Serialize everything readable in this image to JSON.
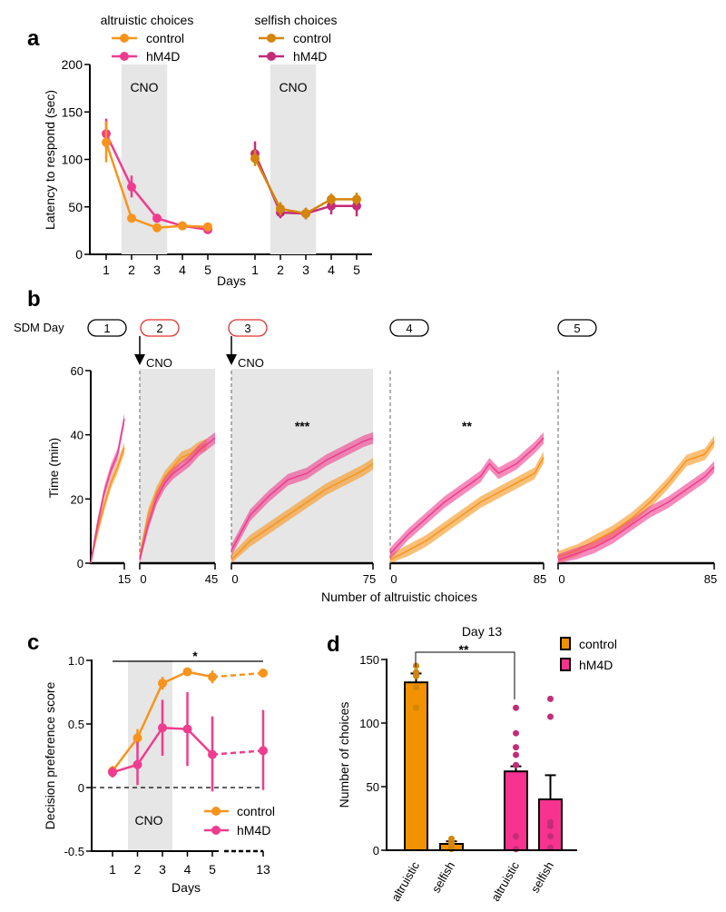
{
  "colors": {
    "control": "#F7941D",
    "hM4D": "#EE3D8E",
    "control_dark": "#D4850B",
    "hM4D_dark": "#C42C78",
    "cno_shade": "#E6E6E6",
    "cno_pill": "#E0312F"
  },
  "chart_data": [
    {
      "panel": "a",
      "type": "line",
      "ylabel": "Latency to respond  (sec)",
      "xlabel": "Days",
      "ylim": [
        0,
        200
      ],
      "yticks": [
        "0",
        "50",
        "100",
        "150",
        "200"
      ],
      "shade_label": "CNO",
      "cno_days": [
        2,
        3
      ],
      "groups": [
        {
          "title": "altruistic choices",
          "days": [
            "1",
            "2",
            "3",
            "4",
            "5"
          ],
          "series": [
            {
              "name": "control",
              "color": "#F7941D",
              "mean": [
                118,
                38,
                28,
                30,
                29
              ],
              "err": [
                [
                  97,
                  140
                ],
                [
                  35,
                  41
                ],
                [
                  26,
                  30
                ],
                [
                  27,
                  33
                ],
                [
                  27,
                  31
                ]
              ]
            },
            {
              "name": "hM4D",
              "color": "#EE3D8E",
              "mean": [
                127,
                71,
                38,
                30,
                26
              ],
              "err": [
                [
                  112,
                  143
                ],
                [
                  60,
                  83
                ],
                [
                  35,
                  41
                ],
                [
                  28,
                  33
                ],
                [
                  24,
                  29
                ]
              ]
            }
          ]
        },
        {
          "title": "selfish choices",
          "days": [
            "1",
            "2",
            "3",
            "4",
            "5"
          ],
          "series": [
            {
              "name": "control",
              "color": "#D4850B",
              "mean": [
                101,
                48,
                43,
                58,
                58
              ],
              "err": [
                [
                  93,
                  110
                ],
                [
                  41,
                  55
                ],
                [
                  37,
                  49
                ],
                [
                  52,
                  64
                ],
                [
                  52,
                  65
                ]
              ]
            },
            {
              "name": "hM4D",
              "color": "#C42C78",
              "mean": [
                106,
                44,
                43,
                51,
                51
              ],
              "err": [
                [
                  97,
                  119
                ],
                [
                  38,
                  50
                ],
                [
                  37,
                  49
                ],
                [
                  42,
                  60
                ],
                [
                  40,
                  60
                ]
              ]
            }
          ]
        }
      ]
    },
    {
      "panel": "b",
      "type": "area",
      "row_label": "SDM Day",
      "ylabel": "Time (min)",
      "xlabel": "Number of altruistic choices",
      "ylim": [
        0,
        60
      ],
      "yticks": [
        "0",
        "20",
        "40",
        "60"
      ],
      "cno_label": "CNO",
      "days": [
        {
          "day": "1",
          "cno": false,
          "xmax": 15,
          "xticks": [
            "15"
          ],
          "stars": "",
          "control": [
            [
              0,
              0
            ],
            [
              3,
              10
            ],
            [
              6,
              18
            ],
            [
              9,
              25
            ],
            [
              12,
              30
            ],
            [
              15,
              36
            ]
          ],
          "hM4D": [
            [
              0,
              0
            ],
            [
              3,
              12
            ],
            [
              6,
              22
            ],
            [
              9,
              29
            ],
            [
              12,
              34
            ],
            [
              15,
              45
            ]
          ]
        },
        {
          "day": "2",
          "cno": true,
          "xmax": 45,
          "xticks": [
            "0",
            "45"
          ],
          "stars": "",
          "control": [
            [
              0,
              2
            ],
            [
              5,
              15
            ],
            [
              10,
              22
            ],
            [
              15,
              27
            ],
            [
              20,
              30
            ],
            [
              25,
              33
            ],
            [
              30,
              34
            ],
            [
              35,
              36
            ],
            [
              40,
              37
            ]
          ],
          "hM4D": [
            [
              0,
              1
            ],
            [
              5,
              12
            ],
            [
              10,
              20
            ],
            [
              15,
              25
            ],
            [
              20,
              28
            ],
            [
              25,
              30
            ],
            [
              30,
              32
            ],
            [
              35,
              35
            ],
            [
              40,
              37
            ],
            [
              45,
              39
            ]
          ]
        },
        {
          "day": "3",
          "cno": true,
          "xmax": 75,
          "xticks": [
            "0",
            "75"
          ],
          "stars": "***",
          "control": [
            [
              0,
              1
            ],
            [
              10,
              7
            ],
            [
              20,
              11
            ],
            [
              30,
              15
            ],
            [
              40,
              19
            ],
            [
              50,
              23
            ],
            [
              60,
              26
            ],
            [
              70,
              29
            ],
            [
              75,
              31
            ]
          ],
          "hM4D": [
            [
              0,
              4
            ],
            [
              10,
              15
            ],
            [
              20,
              21
            ],
            [
              30,
              26
            ],
            [
              40,
              28
            ],
            [
              50,
              32
            ],
            [
              60,
              35
            ],
            [
              70,
              38
            ],
            [
              75,
              39
            ]
          ]
        },
        {
          "day": "4",
          "cno": false,
          "xmax": 85,
          "xticks": [
            "0",
            "85"
          ],
          "stars": "**",
          "control": [
            [
              0,
              1
            ],
            [
              10,
              4
            ],
            [
              20,
              7
            ],
            [
              30,
              11
            ],
            [
              40,
              15
            ],
            [
              50,
              19
            ],
            [
              60,
              22
            ],
            [
              70,
              25
            ],
            [
              80,
              28
            ],
            [
              85,
              33
            ]
          ],
          "hM4D": [
            [
              0,
              3
            ],
            [
              10,
              9
            ],
            [
              20,
              14
            ],
            [
              30,
              19
            ],
            [
              40,
              23
            ],
            [
              50,
              27
            ],
            [
              55,
              31
            ],
            [
              60,
              28
            ],
            [
              70,
              31
            ],
            [
              80,
              36
            ],
            [
              85,
              39
            ]
          ]
        },
        {
          "day": "5",
          "cno": false,
          "xmax": 85,
          "xticks": [
            "0",
            "85"
          ],
          "stars": "",
          "control": [
            [
              0,
              2
            ],
            [
              10,
              4
            ],
            [
              20,
              7
            ],
            [
              30,
              10
            ],
            [
              40,
              14
            ],
            [
              50,
              19
            ],
            [
              60,
              25
            ],
            [
              70,
              32
            ],
            [
              80,
              34
            ],
            [
              85,
              38
            ]
          ],
          "hM4D": [
            [
              0,
              1
            ],
            [
              10,
              3
            ],
            [
              20,
              5
            ],
            [
              30,
              8
            ],
            [
              40,
              12
            ],
            [
              50,
              16
            ],
            [
              60,
              19
            ],
            [
              70,
              23
            ],
            [
              80,
              27
            ],
            [
              85,
              30
            ]
          ]
        }
      ]
    },
    {
      "panel": "c",
      "type": "line",
      "ylabel": "Decision preference score",
      "xlabel": "Days",
      "ylim": [
        -0.5,
        1.0
      ],
      "yticks": [
        "-0.5",
        "0",
        "0.5",
        "1.0"
      ],
      "x": [
        1,
        2,
        3,
        4,
        5,
        13
      ],
      "xticks": [
        "1",
        "2",
        "3",
        "4",
        "5",
        "13"
      ],
      "shade_label": "CNO",
      "cno_days": [
        2,
        3
      ],
      "significance": "*",
      "series": [
        {
          "name": "control",
          "color": "#F7941D",
          "mean": [
            0.13,
            0.39,
            0.82,
            0.91,
            0.87,
            0.9
          ],
          "err": [
            [
              0.08,
              0.17
            ],
            [
              0.32,
              0.46
            ],
            [
              0.77,
              0.87
            ],
            [
              0.89,
              0.93
            ],
            [
              0.82,
              0.92
            ],
            [
              0.87,
              0.93
            ]
          ]
        },
        {
          "name": "hM4D",
          "color": "#EE3D8E",
          "mean": [
            0.12,
            0.18,
            0.47,
            0.46,
            0.26,
            0.29
          ],
          "err": [
            [
              0.08,
              0.16
            ],
            [
              0.02,
              0.36
            ],
            [
              0.25,
              0.69
            ],
            [
              0.17,
              0.75
            ],
            [
              -0.03,
              0.56
            ],
            [
              -0.02,
              0.61
            ]
          ]
        }
      ],
      "legend": "bottom-right"
    },
    {
      "panel": "d",
      "type": "bar",
      "title": "Day 13",
      "ylabel": "Number of choices",
      "ylim": [
        0,
        150
      ],
      "yticks": [
        "0",
        "50",
        "100",
        "150"
      ],
      "significance": "**",
      "categories": [
        "altruistic",
        "selfish",
        "altruistic",
        "selfish"
      ],
      "groups": [
        "control",
        "control",
        "hM4D",
        "hM4D"
      ],
      "values": [
        132,
        5,
        62,
        40
      ],
      "err_upper": [
        139,
        7,
        66,
        59
      ],
      "points": [
        [
          145,
          140,
          137,
          128,
          112
        ],
        [
          9,
          7,
          5,
          3,
          1
        ],
        [
          112,
          92,
          81,
          75,
          67,
          11,
          1
        ],
        [
          119,
          105,
          22,
          19,
          11,
          2
        ]
      ],
      "legend": [
        {
          "name": "control",
          "color": "#F39200"
        },
        {
          "name": "hM4D",
          "color": "#F7338F"
        }
      ],
      "legend_placement": "top-right"
    }
  ]
}
